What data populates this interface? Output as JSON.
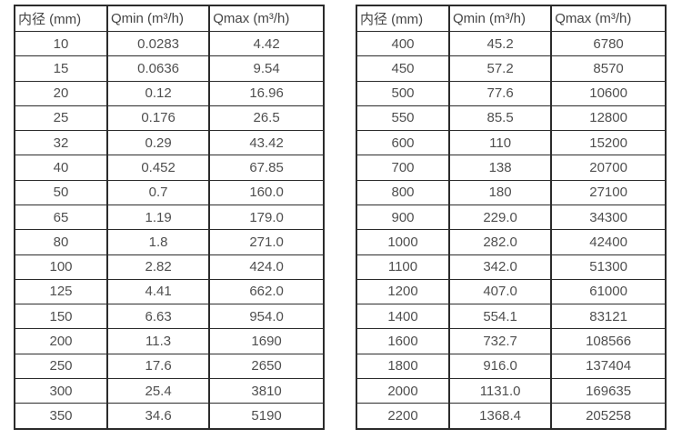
{
  "tables": [
    {
      "name": "small-diameter-flow-ranges",
      "headers": [
        "内径 (mm)",
        "Qmin (m³/h)",
        "Qmax (m³/h)"
      ],
      "rows": [
        [
          "10",
          "0.0283",
          "4.42"
        ],
        [
          "15",
          "0.0636",
          "9.54"
        ],
        [
          "20",
          "0.12",
          "16.96"
        ],
        [
          "25",
          "0.176",
          "26.5"
        ],
        [
          "32",
          "0.29",
          "43.42"
        ],
        [
          "40",
          "0.452",
          "67.85"
        ],
        [
          "50",
          "0.7",
          "160.0"
        ],
        [
          "65",
          "1.19",
          "179.0"
        ],
        [
          "80",
          "1.8",
          "271.0"
        ],
        [
          "100",
          "2.82",
          "424.0"
        ],
        [
          "125",
          "4.41",
          "662.0"
        ],
        [
          "150",
          "6.63",
          "954.0"
        ],
        [
          "200",
          "11.3",
          "1690"
        ],
        [
          "250",
          "17.6",
          "2650"
        ],
        [
          "300",
          "25.4",
          "3810"
        ],
        [
          "350",
          "34.6",
          "5190"
        ]
      ]
    },
    {
      "name": "large-diameter-flow-ranges",
      "headers": [
        "内径 (mm)",
        "Qmin (m³/h)",
        "Qmax (m³/h)"
      ],
      "rows": [
        [
          "400",
          "45.2",
          "6780"
        ],
        [
          "450",
          "57.2",
          "8570"
        ],
        [
          "500",
          "77.6",
          "10600"
        ],
        [
          "550",
          "85.5",
          "12800"
        ],
        [
          "600",
          "110",
          "15200"
        ],
        [
          "700",
          "138",
          "20700"
        ],
        [
          "800",
          "180",
          "27100"
        ],
        [
          "900",
          "229.0",
          "34300"
        ],
        [
          "1000",
          "282.0",
          "42400"
        ],
        [
          "1100",
          "342.0",
          "51300"
        ],
        [
          "1200",
          "407.0",
          "61000"
        ],
        [
          "1400",
          "554.1",
          "83121"
        ],
        [
          "1600",
          "732.7",
          "108566"
        ],
        [
          "1800",
          "916.0",
          "137404"
        ],
        [
          "2000",
          "1131.0",
          "169635"
        ],
        [
          "2200",
          "1368.4",
          "205258"
        ]
      ]
    }
  ],
  "colors": {
    "border": "#2b2b2b",
    "text": "#4f4f4f",
    "background": "#ffffff"
  }
}
